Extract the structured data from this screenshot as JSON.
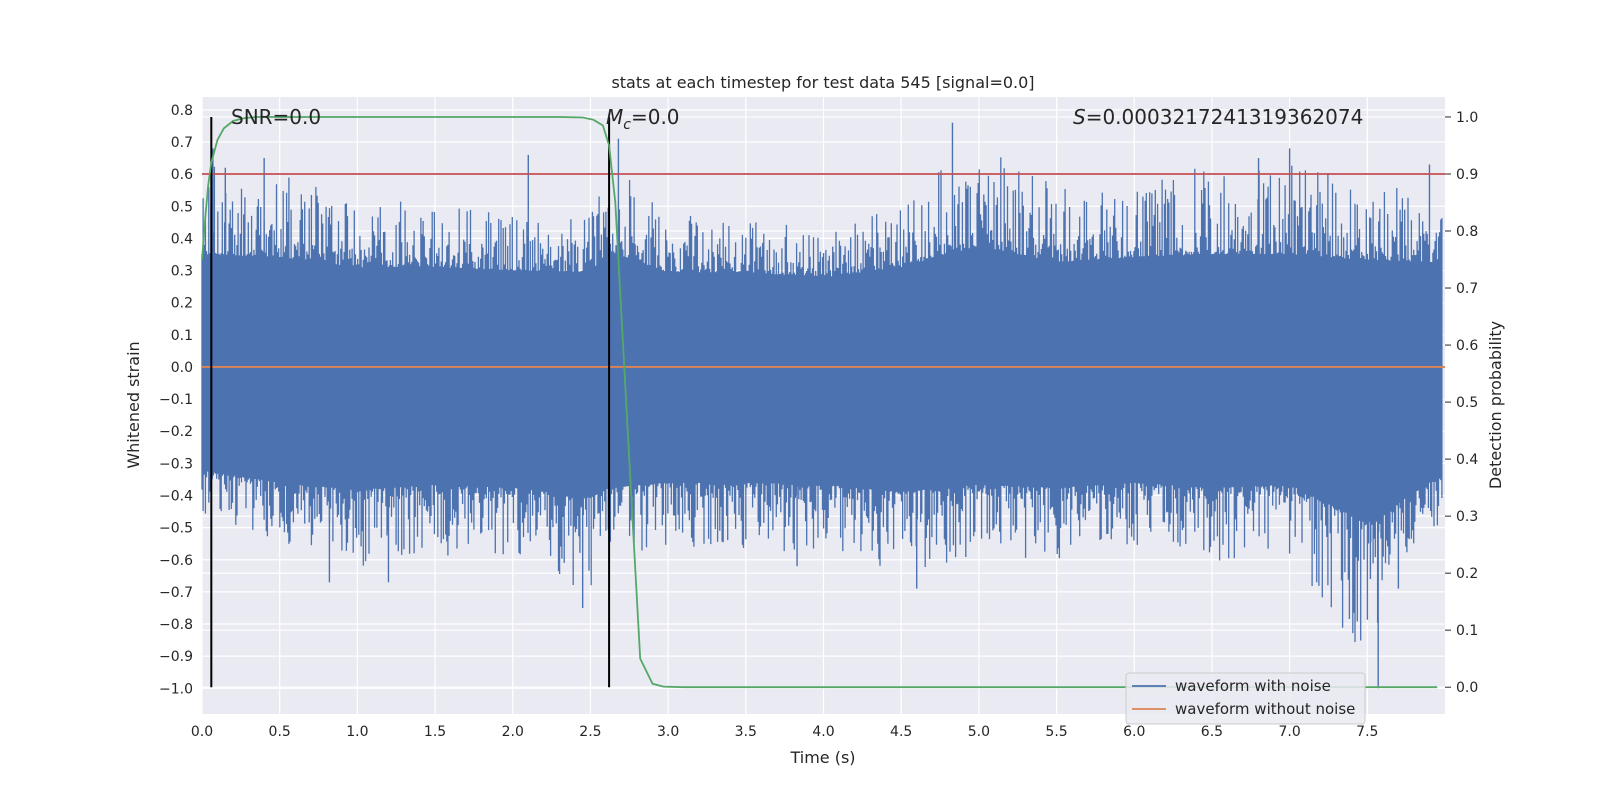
{
  "chart_data": {
    "type": "line",
    "title": "stats at each timestep for test data 545 [signal=0.0]",
    "xlabel": "Time (s)",
    "ylabel": "Whitened strain",
    "y2label": "Detection probability",
    "xlim": [
      0.0,
      8.0
    ],
    "ylim": [
      -1.08,
      0.84
    ],
    "y2lim": [
      -0.047,
      1.035
    ],
    "x_ticks": [
      "0.0",
      "0.5",
      "1.0",
      "1.5",
      "2.0",
      "2.5",
      "3.0",
      "3.5",
      "4.0",
      "4.5",
      "5.0",
      "5.5",
      "6.0",
      "6.5",
      "7.0",
      "7.5"
    ],
    "y_ticks": [
      "0.8",
      "0.7",
      "0.6",
      "0.5",
      "0.4",
      "0.3",
      "0.2",
      "0.1",
      "0.0",
      "-0.1",
      "-0.2",
      "-0.3",
      "-0.4",
      "-0.5",
      "-0.6",
      "-0.7",
      "-0.8",
      "-0.9",
      "-1.0"
    ],
    "y2_ticks": [
      "1.0",
      "0.9",
      "0.8",
      "0.7",
      "0.6",
      "0.5",
      "0.4",
      "0.3",
      "0.2",
      "0.1",
      "0.0"
    ],
    "grid": true,
    "annotations": {
      "snr": "SNR=0.0",
      "mc_symbol": "M",
      "mc_sub": "c",
      "mc_value": "=0.0",
      "s_symbol": "S",
      "s_value": "=0.0003217241319362074"
    },
    "legend": {
      "placement": "bottom-right",
      "entries": [
        "waveform with noise",
        "waveform without noise"
      ]
    },
    "colors": {
      "noise": "#4c72b0",
      "clean": "#dd8452",
      "probability": "#55a868",
      "threshold": "#c44e52",
      "marker": "#000000",
      "background": "#eaeaf2",
      "grid": "#ffffff"
    },
    "threshold_probability": 0.9,
    "vertical_markers": [
      0.06,
      2.62
    ],
    "series": [
      {
        "name": "waveform with noise",
        "axis": "left",
        "envelope": {
          "x": [
            0.0,
            0.5,
            1.0,
            1.5,
            2.0,
            2.5,
            2.62,
            3.0,
            3.5,
            4.0,
            4.5,
            5.0,
            5.5,
            6.0,
            6.5,
            7.0,
            7.5,
            7.95
          ],
          "y_max": [
            0.68,
            0.65,
            0.55,
            0.55,
            0.52,
            0.5,
            0.71,
            0.5,
            0.5,
            0.45,
            0.55,
            0.76,
            0.6,
            0.65,
            0.68,
            0.68,
            0.62,
            0.6
          ],
          "y_min": [
            -0.48,
            -0.6,
            -0.67,
            -0.62,
            -0.65,
            -0.75,
            -0.65,
            -0.6,
            -0.6,
            -0.62,
            -0.69,
            -0.62,
            -0.65,
            -0.6,
            -0.65,
            -0.62,
            -1.0,
            -0.55
          ]
        },
        "spikes": [
          {
            "x": 0.07,
            "y": 0.68
          },
          {
            "x": 0.15,
            "y": 0.62
          },
          {
            "x": 0.4,
            "y": 0.65
          },
          {
            "x": 0.82,
            "y": -0.67
          },
          {
            "x": 1.2,
            "y": -0.67
          },
          {
            "x": 2.1,
            "y": 0.66
          },
          {
            "x": 2.45,
            "y": -0.75
          },
          {
            "x": 2.68,
            "y": 0.71
          },
          {
            "x": 3.83,
            "y": -0.62
          },
          {
            "x": 4.83,
            "y": 0.76
          },
          {
            "x": 4.6,
            "y": -0.69
          },
          {
            "x": 6.8,
            "y": 0.65
          },
          {
            "x": 7.0,
            "y": 0.68
          },
          {
            "x": 7.52,
            "y": -0.66
          },
          {
            "x": 7.57,
            "y": -1.0
          },
          {
            "x": 7.7,
            "y": -0.69
          },
          {
            "x": 7.9,
            "y": 0.63
          }
        ]
      },
      {
        "name": "waveform without noise",
        "axis": "left",
        "x": [
          0.0,
          8.0
        ],
        "y": [
          0.0,
          0.0
        ]
      },
      {
        "axis": "right",
        "x": [
          0.0,
          0.02,
          0.04,
          0.06,
          0.1,
          0.14,
          0.2,
          0.27,
          0.35,
          0.45,
          0.7,
          1.0,
          1.5,
          2.0,
          2.3,
          2.45,
          2.52,
          2.58,
          2.62,
          2.66,
          2.7,
          2.76,
          2.82,
          2.9,
          2.97,
          3.1,
          3.5,
          5.0,
          7.0,
          7.95
        ],
        "y": [
          0.75,
          0.82,
          0.88,
          0.92,
          0.96,
          0.98,
          0.993,
          0.998,
          1.0,
          1.0,
          1.0,
          1.0,
          1.0,
          1.0,
          1.0,
          0.999,
          0.995,
          0.985,
          0.95,
          0.85,
          0.65,
          0.35,
          0.05,
          0.006,
          0.001,
          0.0,
          0.0,
          0.0,
          0.0,
          0.0
        ]
      }
    ]
  }
}
